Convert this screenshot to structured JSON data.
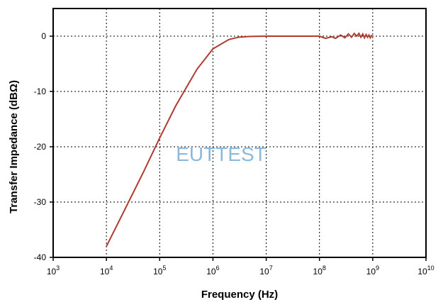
{
  "chart_data": {
    "type": "line",
    "title": "",
    "xlabel": "Frequency (Hz)",
    "ylabel": "Transfer Impedance (dBΩ)",
    "xscale": "log",
    "xlim": [
      1000,
      10000000000
    ],
    "ylim": [
      -40,
      5
    ],
    "x_ticks": [
      {
        "base": "10",
        "exp": "3"
      },
      {
        "base": "10",
        "exp": "4"
      },
      {
        "base": "10",
        "exp": "5"
      },
      {
        "base": "10",
        "exp": "6"
      },
      {
        "base": "10",
        "exp": "7"
      },
      {
        "base": "10",
        "exp": "8"
      },
      {
        "base": "10",
        "exp": "9"
      },
      {
        "base": "10",
        "exp": "10"
      }
    ],
    "y_ticks": [
      "0",
      "-10",
      "-20",
      "-30",
      "-40"
    ],
    "grid": true,
    "line_color": "#b03a2e",
    "series": [
      {
        "x": [
          10000,
          20000,
          50000,
          100000,
          200000,
          500000,
          1000000,
          2000000,
          3000000,
          5000000,
          10000000,
          20000000,
          50000000,
          80000000,
          100000000,
          130000000,
          170000000,
          200000000,
          250000000,
          300000000,
          350000000,
          400000000,
          450000000,
          500000000,
          550000000,
          600000000,
          650000000,
          700000000,
          750000000,
          800000000,
          850000000,
          900000000,
          950000000,
          1000000000
        ],
        "y": [
          -38,
          -32.2,
          -24.5,
          -18.4,
          -12.6,
          -6,
          -2.3,
          -0.6,
          -0.2,
          -0.05,
          0,
          0,
          0,
          0,
          0,
          -0.4,
          -0.1,
          -0.4,
          0.2,
          -0.3,
          0.4,
          -0.2,
          0.5,
          0,
          0.5,
          -0.2,
          0.4,
          -0.3,
          0.3,
          -0.2,
          0.2,
          -0.3,
          0.1,
          0
        ]
      }
    ]
  },
  "watermark": "EUTTEST"
}
